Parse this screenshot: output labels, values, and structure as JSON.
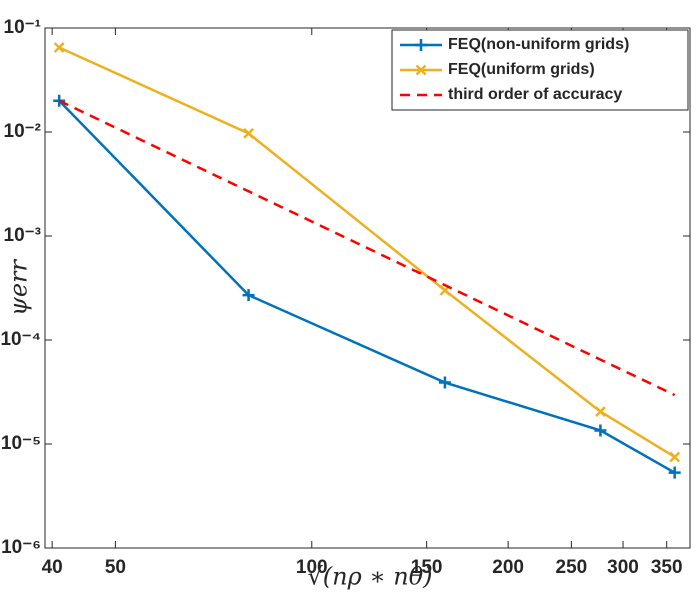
{
  "chart_data": {
    "type": "line",
    "x_label": "√(nρ ∗ nθ)",
    "y_label": "ψerr",
    "x": [
      41,
      80,
      160,
      277,
      360
    ],
    "series": [
      {
        "name": "FEQ(non-uniform grids)",
        "color": "#0072BD",
        "marker": "+",
        "linestyle": "solid",
        "values": [
          0.02,
          0.00027,
          3.9e-05,
          1.35e-05,
          5.3e-06
        ]
      },
      {
        "name": "FEQ(uniform grids)",
        "color": "#EDB120",
        "marker": "x",
        "linestyle": "solid",
        "values": [
          0.065,
          0.0097,
          0.0003,
          2.05e-05,
          7.5e-06
        ]
      },
      {
        "name": "third order of accuracy",
        "color": "#FF0000",
        "marker": "none",
        "linestyle": "dashed",
        "values": [
          0.02,
          0.00269,
          0.000337,
          6.48e-05,
          2.96e-05
        ]
      }
    ],
    "xscale": "log",
    "yscale": "log",
    "xlim": [
      39,
      380
    ],
    "ylim": [
      1e-06,
      0.1
    ],
    "xticks": [
      40,
      50,
      100,
      150,
      200,
      250,
      300,
      350
    ],
    "yticks": [
      {
        "value": 1e-06,
        "label": "10⁻⁶"
      },
      {
        "value": 1e-05,
        "label": "10⁻⁵"
      },
      {
        "value": 0.0001,
        "label": "10⁻⁴"
      },
      {
        "value": 0.001,
        "label": "10⁻³"
      },
      {
        "value": 0.01,
        "label": "10⁻²"
      },
      {
        "value": 0.1,
        "label": "10⁻¹"
      }
    ],
    "grid": false,
    "legend": "northeast"
  }
}
